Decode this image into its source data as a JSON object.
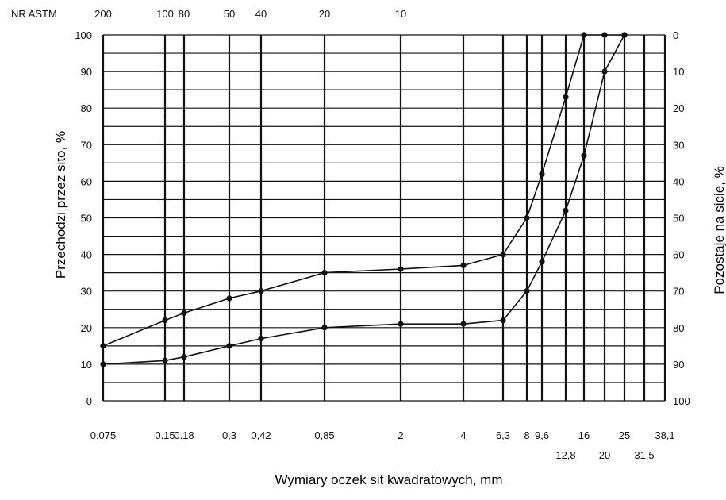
{
  "chart_data": {
    "type": "line",
    "top_axis_label": "NR ASTM",
    "top_axis": [
      {
        "label": "200",
        "x": 0.075
      },
      {
        "label": "100",
        "x": 0.15
      },
      {
        "label": "80",
        "x": 0.18
      },
      {
        "label": "50",
        "x": 0.3
      },
      {
        "label": "40",
        "x": 0.42
      },
      {
        "label": "20",
        "x": 0.85
      },
      {
        "label": "10",
        "x": 2
      }
    ],
    "bottom_ticks_row1": [
      {
        "label": "0.075",
        "x": 0.075
      },
      {
        "label": "0.15",
        "x": 0.15
      },
      {
        "label": "0.18",
        "x": 0.18
      },
      {
        "label": "0,3",
        "x": 0.3
      },
      {
        "label": "0,42",
        "x": 0.42
      },
      {
        "label": "0,85",
        "x": 0.85
      },
      {
        "label": "2",
        "x": 2
      },
      {
        "label": "4",
        "x": 4
      },
      {
        "label": "6,3",
        "x": 6.3
      },
      {
        "label": "8",
        "x": 8
      },
      {
        "label": "9,6",
        "x": 9.6
      },
      {
        "label": "16",
        "x": 16
      },
      {
        "label": "25",
        "x": 25
      },
      {
        "label": "38,1",
        "x": 38.1
      }
    ],
    "bottom_ticks_row2": [
      {
        "label": "12,8",
        "x": 12.8
      },
      {
        "label": "20",
        "x": 20
      },
      {
        "label": "31,5",
        "x": 31.5
      }
    ],
    "left_ticks": [
      "0",
      "10",
      "20",
      "30",
      "40",
      "50",
      "60",
      "70",
      "80",
      "90",
      "100"
    ],
    "right_ticks": [
      "100",
      "90",
      "80",
      "70",
      "60",
      "50",
      "40",
      "30",
      "20",
      "10",
      "0"
    ],
    "ylabel": "Przechodzi przez sito, %",
    "ylabel_right": "Pozostaje na sicie, %",
    "xlabel": "Wymiary oczek sit kwadratowych, mm",
    "xscale": "log",
    "xlim": [
      0.075,
      38.1
    ],
    "ylim": [
      0,
      100
    ],
    "grid": true,
    "series": [
      {
        "values": [
          [
            0.075,
            15
          ],
          [
            0.15,
            22
          ],
          [
            0.18,
            24
          ],
          [
            0.3,
            28
          ],
          [
            0.42,
            30
          ],
          [
            0.85,
            35
          ],
          [
            2,
            36
          ],
          [
            4,
            37
          ],
          [
            6.3,
            40
          ],
          [
            8,
            50
          ],
          [
            9.6,
            62
          ],
          [
            12.8,
            83
          ],
          [
            16,
            100
          ],
          [
            20,
            100
          ],
          [
            25,
            100
          ]
        ]
      },
      {
        "values": [
          [
            0.075,
            10
          ],
          [
            0.15,
            11
          ],
          [
            0.18,
            12
          ],
          [
            0.3,
            15
          ],
          [
            0.42,
            17
          ],
          [
            0.85,
            20
          ],
          [
            2,
            21
          ],
          [
            4,
            21
          ],
          [
            6.3,
            22
          ],
          [
            8,
            30
          ],
          [
            9.6,
            38
          ],
          [
            12.8,
            52
          ],
          [
            16,
            67
          ],
          [
            20,
            90
          ],
          [
            25,
            100
          ]
        ]
      }
    ]
  }
}
